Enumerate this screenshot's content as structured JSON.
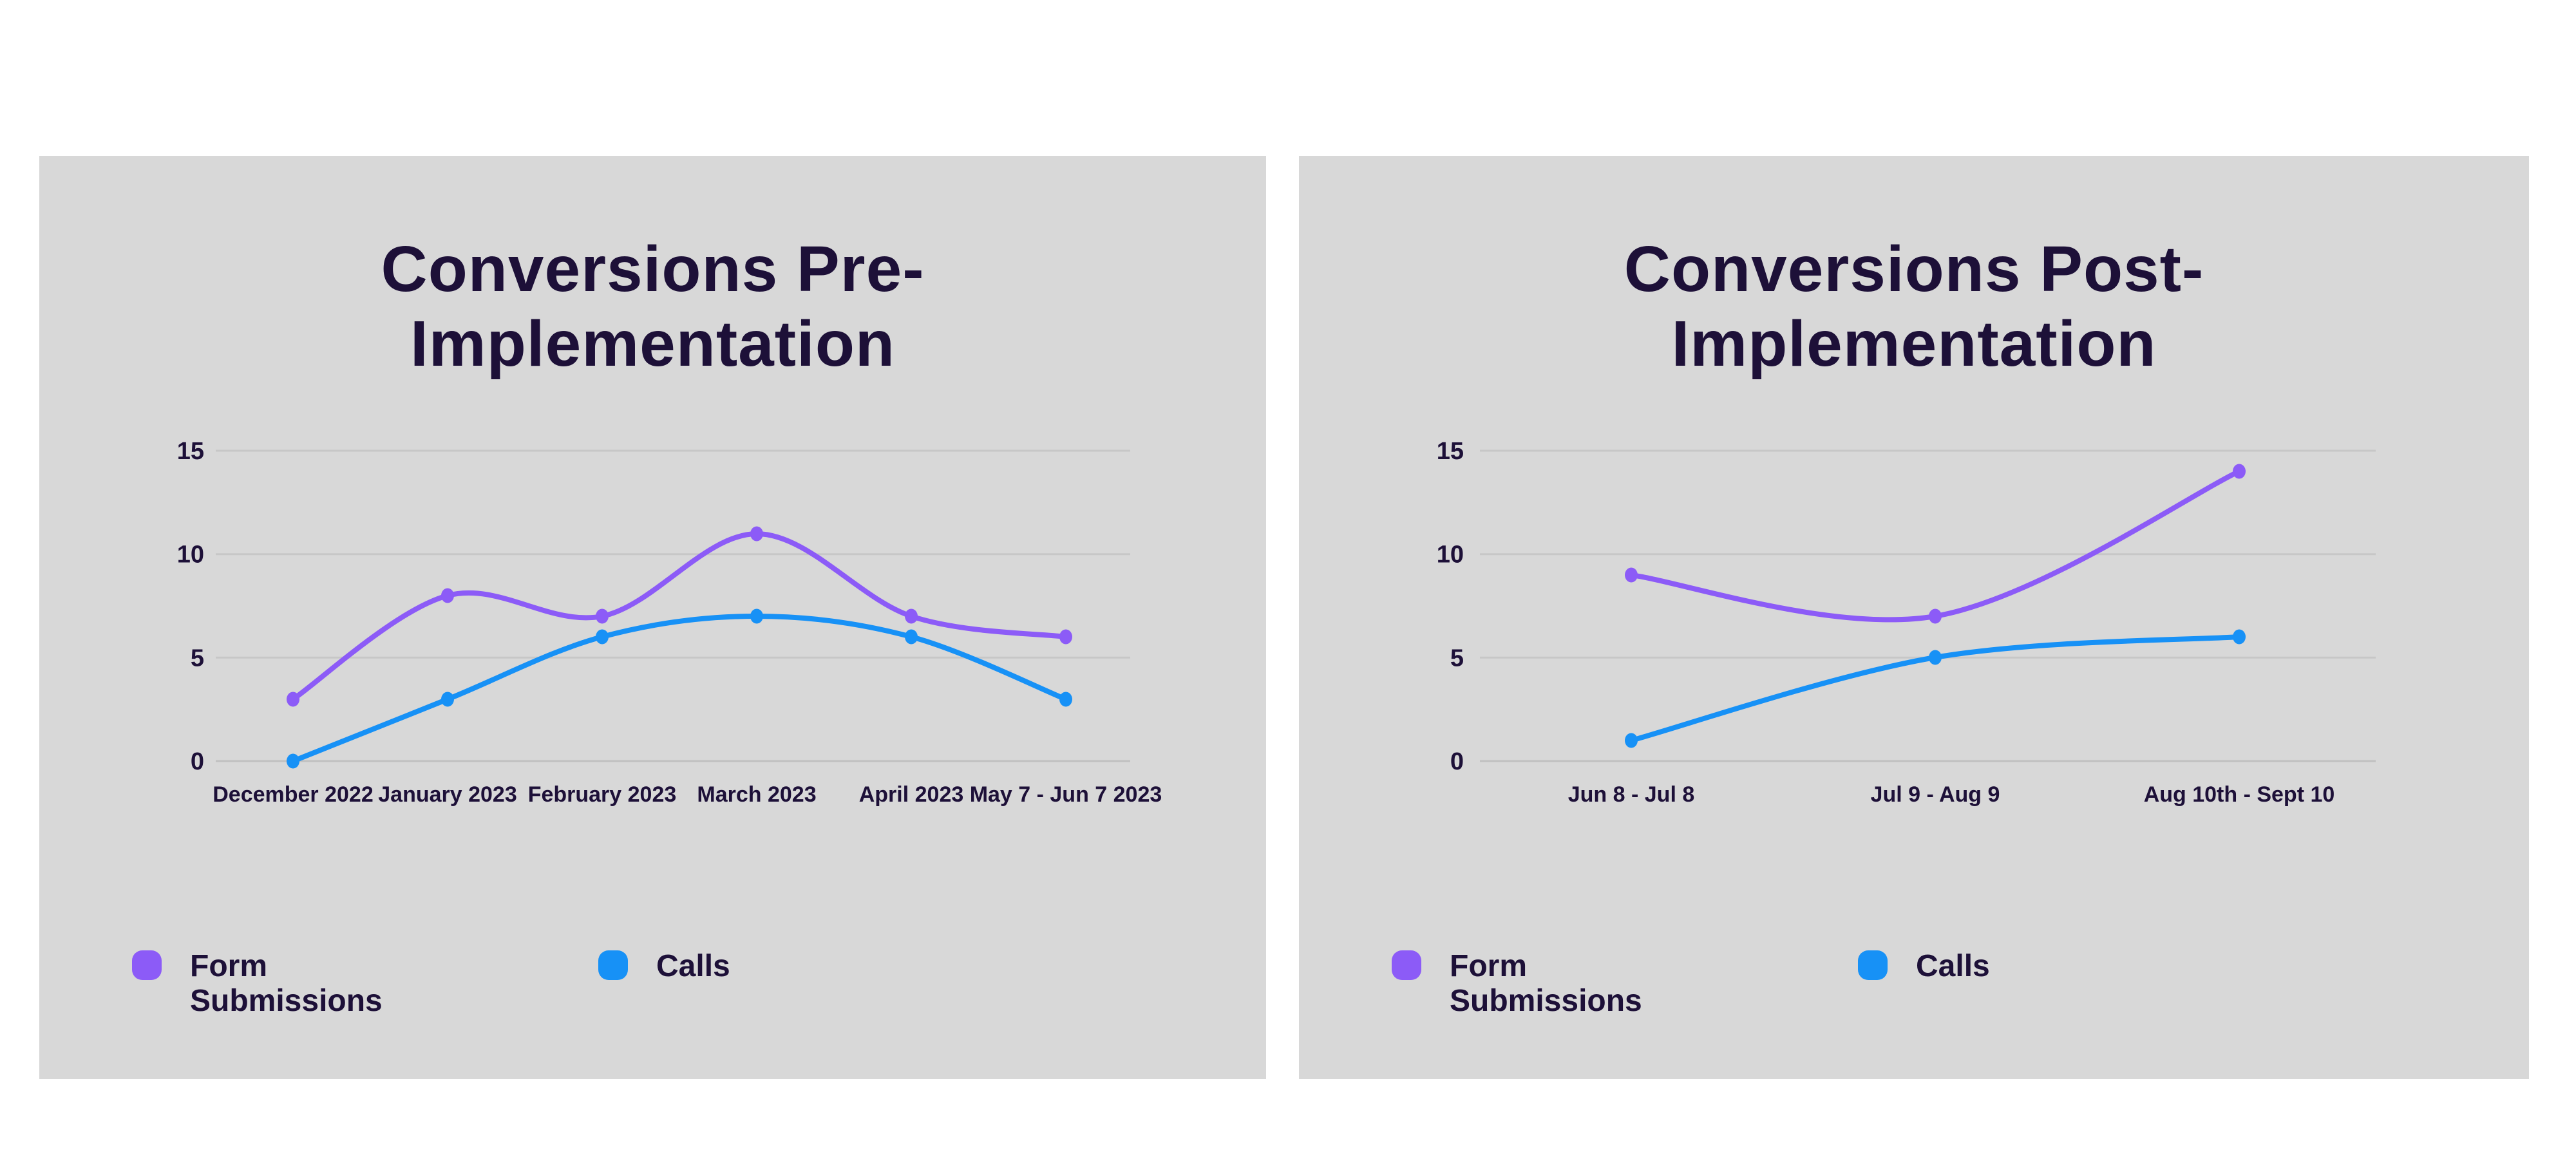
{
  "colors": {
    "page_bg": "#ffffff",
    "card_bg": "#d8d8d8",
    "text": "#1d1038",
    "grid": "#c7c7c7",
    "form_submissions": "#8c5bf7",
    "calls": "#1791f6"
  },
  "chart_data": [
    {
      "type": "line",
      "title": "Conversions Pre-Implementation",
      "title_line1": "Conversions Pre-",
      "title_line2": "Implementation",
      "categories": [
        "December 2022",
        "January 2023",
        "February 2023",
        "March 2023",
        "April 2023",
        "May 7 - Jun 7 2023"
      ],
      "series": [
        {
          "name": "Form Submissions",
          "color": "#8c5bf7",
          "values": [
            3,
            8,
            7,
            11,
            7,
            6
          ]
        },
        {
          "name": "Calls",
          "color": "#1791f6",
          "values": [
            0,
            3,
            6,
            7,
            6,
            3
          ]
        }
      ],
      "yticks": [
        0,
        5,
        10,
        15
      ],
      "ylim": [
        0,
        15
      ],
      "grid": true,
      "legend_position": "bottom"
    },
    {
      "type": "line",
      "title": "Conversions Post-Implementation",
      "title_line1": "Conversions Post-",
      "title_line2": "Implementation",
      "categories": [
        "Jun 8 - Jul 8",
        "Jul 9 - Aug 9",
        "Aug 10th - Sept 10"
      ],
      "series": [
        {
          "name": "Form Submissions",
          "color": "#8c5bf7",
          "values": [
            9,
            7,
            14
          ]
        },
        {
          "name": "Calls",
          "color": "#1791f6",
          "values": [
            1,
            5,
            6
          ]
        }
      ],
      "yticks": [
        0,
        5,
        10,
        15
      ],
      "ylim": [
        0,
        15
      ],
      "grid": true,
      "legend_position": "bottom"
    }
  ]
}
